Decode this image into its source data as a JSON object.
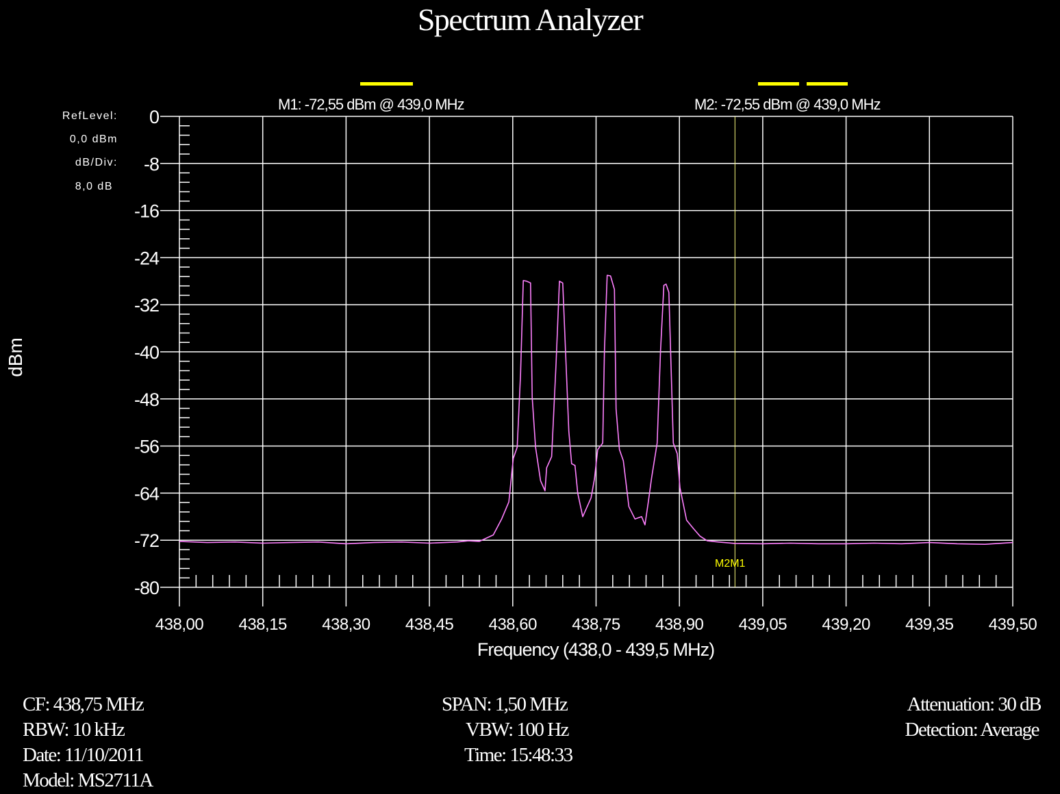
{
  "title": "Spectrum Analyzer",
  "ref_panel": {
    "ref_level_label": "RefLevel:",
    "ref_level_value": "0,0  dBm",
    "db_div_label": "dB/Div:",
    "db_div_value": "8,0 dB"
  },
  "markers": {
    "m1_readout": "M1: -72,55 dBm @ 439,0 MHz",
    "m2_readout": "M2: -72,55 dBm @ 439,0 MHz",
    "marker_label": "M2M1",
    "marker_freq_mhz": 439.0,
    "marker_color": "#ffff00"
  },
  "info": {
    "cf": "CF: 438,75 MHz",
    "rbw": "RBW: 10 kHz",
    "date": "Date: 11/10/2011",
    "model": "Model: MS2711A",
    "span": "SPAN: 1,50 MHz",
    "vbw": "VBW: 100 Hz",
    "time": "Time: 15:48:33",
    "attenuation": "Attenuation: 30 dB",
    "detection": "Detection: Average"
  },
  "chart_data": {
    "type": "line",
    "title": "Spectrum Analyzer",
    "xlabel": "Frequency (438,0 - 439,5 MHz)",
    "ylabel": "dBm",
    "xlim": [
      438.0,
      439.5
    ],
    "ylim": [
      -80,
      0
    ],
    "grid": true,
    "trace_color": "#ff80ff",
    "x_ticks": [
      438.0,
      438.15,
      438.3,
      438.45,
      438.6,
      438.75,
      438.9,
      439.05,
      439.2,
      439.35,
      439.5
    ],
    "x_tick_labels": [
      "438,00",
      "438,15",
      "438,30",
      "438,45",
      "438,60",
      "438,75",
      "438,90",
      "439,05",
      "439,20",
      "439,35",
      "439,50"
    ],
    "y_ticks": [
      0,
      -8,
      -16,
      -24,
      -32,
      -40,
      -48,
      -56,
      -64,
      -72,
      -80
    ],
    "y_tick_labels": [
      "0",
      "-8",
      "-16",
      "-24",
      "-32",
      "-40",
      "-48",
      "-56",
      "-64",
      "-72",
      "-80"
    ],
    "series": [
      {
        "x": [
          438.0,
          438.05,
          438.1,
          438.15,
          438.2,
          438.25,
          438.3,
          438.35,
          438.4,
          438.45,
          438.5,
          438.52,
          438.54,
          438.565,
          438.58,
          438.593,
          438.601,
          438.608,
          438.614,
          438.619,
          438.625,
          438.632,
          438.635,
          438.641,
          438.65,
          438.658,
          438.661,
          438.67,
          438.678,
          438.684,
          438.69,
          438.695,
          438.701,
          438.706,
          438.712,
          438.717,
          438.726,
          438.741,
          438.747,
          438.753,
          438.762,
          438.765,
          438.77,
          438.776,
          438.783,
          438.786,
          438.792,
          438.799,
          438.809,
          438.82,
          438.832,
          438.838,
          438.844,
          438.85,
          438.86,
          438.866,
          438.872,
          438.876,
          438.881,
          438.889,
          438.896,
          438.901,
          438.913,
          438.925,
          438.937,
          438.95,
          438.97,
          439.0,
          439.05,
          439.1,
          439.15,
          439.2,
          439.25,
          439.3,
          439.35,
          439.4,
          439.45,
          439.5
        ],
        "y": [
          -72.2,
          -72.4,
          -72.3,
          -72.5,
          -72.4,
          -72.3,
          -72.6,
          -72.4,
          -72.3,
          -72.5,
          -72.3,
          -72.1,
          -72.2,
          -71.1,
          -68.4,
          -65.5,
          -58.1,
          -56.2,
          -43.8,
          -27.9,
          -28.0,
          -28.3,
          -47.7,
          -56.2,
          -61.9,
          -63.6,
          -59.7,
          -57.8,
          -41.9,
          -28.0,
          -28.3,
          -39.9,
          -53.5,
          -59.0,
          -59.3,
          -64.0,
          -68.0,
          -64.8,
          -61.6,
          -56.6,
          -55.5,
          -39.9,
          -27.0,
          -27.1,
          -29.4,
          -49.7,
          -56.6,
          -58.5,
          -66.3,
          -68.4,
          -68.0,
          -69.4,
          -65.5,
          -61.4,
          -55.5,
          -39.9,
          -28.7,
          -28.5,
          -29.9,
          -55.5,
          -57.3,
          -63.1,
          -68.6,
          -70.0,
          -71.3,
          -72.1,
          -72.3,
          -72.55,
          -72.6,
          -72.5,
          -72.6,
          -72.6,
          -72.5,
          -72.6,
          -72.4,
          -72.6,
          -72.7,
          -72.4
        ]
      }
    ]
  }
}
